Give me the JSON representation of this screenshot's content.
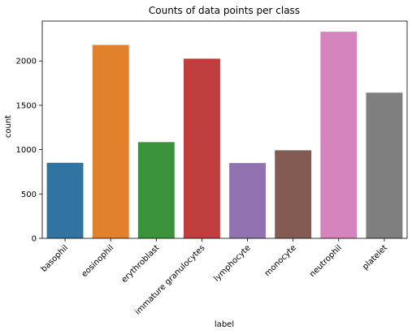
{
  "chart_data": {
    "type": "bar",
    "title": "Counts of data points per class",
    "xlabel": "label",
    "ylabel": "count",
    "categories": [
      "basophil",
      "eosinophil",
      "erythroblast",
      "immature granulocytes",
      "lymphocyte",
      "monocyte",
      "neutrophil",
      "platelet"
    ],
    "values": [
      852,
      2181,
      1085,
      2026,
      849,
      993,
      2330,
      1643
    ],
    "colors": [
      "#3274a1",
      "#e1812c",
      "#3a923a",
      "#c03d3e",
      "#9372b2",
      "#845b53",
      "#d684bd",
      "#7f7f7f"
    ],
    "ylim": [
      0,
      2450
    ],
    "yticks": [
      0,
      500,
      1000,
      1500,
      2000
    ],
    "grid": false,
    "legend": "none"
  }
}
